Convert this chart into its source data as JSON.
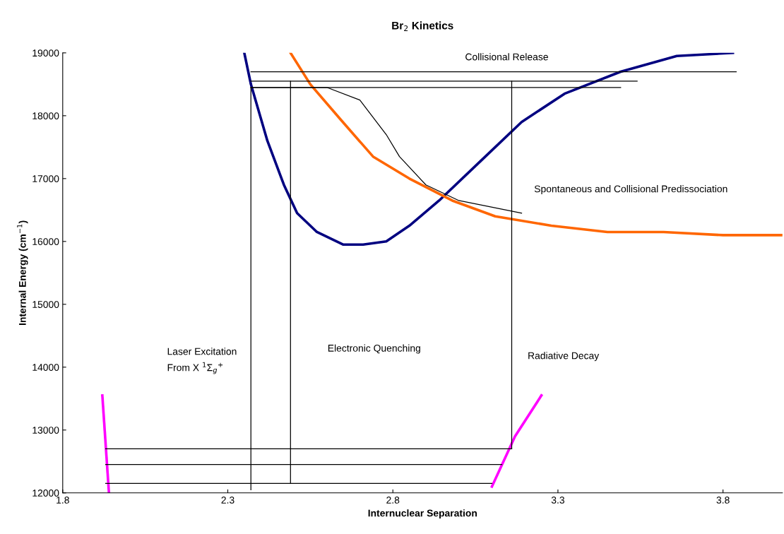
{
  "chart_data": {
    "type": "line",
    "title": "Br$_{2}$ Kinetics",
    "xlabel": "Internuclear Separation",
    "ylabel": "Internal Energy (cm$^{−1}$)",
    "xlim": [
      1.8,
      3.98
    ],
    "ylim": [
      12000,
      19000
    ],
    "xticks": [
      1.8,
      2.3,
      2.8,
      3.3,
      3.8
    ],
    "yticks": [
      12000,
      13000,
      14000,
      15000,
      16000,
      17000,
      18000,
      19000
    ],
    "grid": false,
    "legend": false,
    "marker": "none",
    "line_style": "solid",
    "series": [
      {
        "color": "#000080",
        "x": [
          2.35,
          2.37,
          2.42,
          2.47,
          2.51,
          2.57,
          2.65,
          2.71,
          2.78,
          2.85,
          2.94,
          3.07,
          3.19,
          3.32,
          3.49,
          3.66,
          3.83
        ],
        "values": [
          19000,
          18500,
          17600,
          16900,
          16450,
          16150,
          15950,
          15950,
          16000,
          16250,
          16650,
          17300,
          17900,
          18350,
          18700,
          18950,
          19000
        ]
      },
      {
        "color": "#ff6600",
        "x": [
          2.49,
          2.55,
          2.64,
          2.74,
          2.85,
          2.98,
          3.11,
          3.28,
          3.45,
          3.62,
          3.8,
          3.98
        ],
        "values": [
          19000,
          18500,
          17950,
          17350,
          17000,
          16650,
          16400,
          16250,
          16150,
          16150,
          16100,
          16100
        ]
      },
      {
        "color": "#ff00ff",
        "x": [
          1.92,
          1.94
        ],
        "values": [
          13550,
          12000
        ]
      },
      {
        "color": "#ff00ff",
        "x": [
          3.1,
          3.17,
          3.25
        ],
        "values": [
          12100,
          12900,
          13550
        ]
      },
      {
        "color": "#000000",
        "x": [
          1.93,
          3.16
        ],
        "values": [
          12700,
          12700
        ]
      },
      {
        "color": "#000000",
        "x": [
          1.93,
          3.13
        ],
        "values": [
          12450,
          12450
        ]
      },
      {
        "color": "#000000",
        "x": [
          1.93,
          3.1
        ],
        "values": [
          12150,
          12150
        ]
      },
      {
        "color": "#000000",
        "x": [
          2.37,
          3.84
        ],
        "values": [
          18700,
          18700
        ]
      },
      {
        "color": "#000000",
        "x": [
          2.37,
          3.54
        ],
        "values": [
          18550,
          18550
        ]
      },
      {
        "color": "#000000",
        "x": [
          2.37,
          3.49
        ],
        "values": [
          18450,
          18450
        ]
      },
      {
        "color": "#000000",
        "x": [
          2.37,
          2.37
        ],
        "values": [
          12050,
          18450
        ]
      },
      {
        "color": "#000000",
        "x": [
          2.49,
          2.49
        ],
        "values": [
          18550,
          12150
        ]
      },
      {
        "color": "#000000",
        "x": [
          3.16,
          3.16
        ],
        "values": [
          18550,
          12700
        ]
      },
      {
        "color": "#000000",
        "x": [
          2.37,
          2.6,
          2.7,
          2.78,
          2.82,
          2.9,
          3.0,
          3.19
        ],
        "values": [
          18450,
          18450,
          18250,
          17700,
          17350,
          16900,
          16650,
          16450
        ]
      }
    ],
    "annotations": [
      "Collisional Release",
      "Spontaneous and Collisional Predissociation",
      "Electronic Quenching",
      "Radiative Decay",
      "Laser Excitation\nFrom X $^{1}$Σ$_{g}$$^{+}$"
    ]
  }
}
